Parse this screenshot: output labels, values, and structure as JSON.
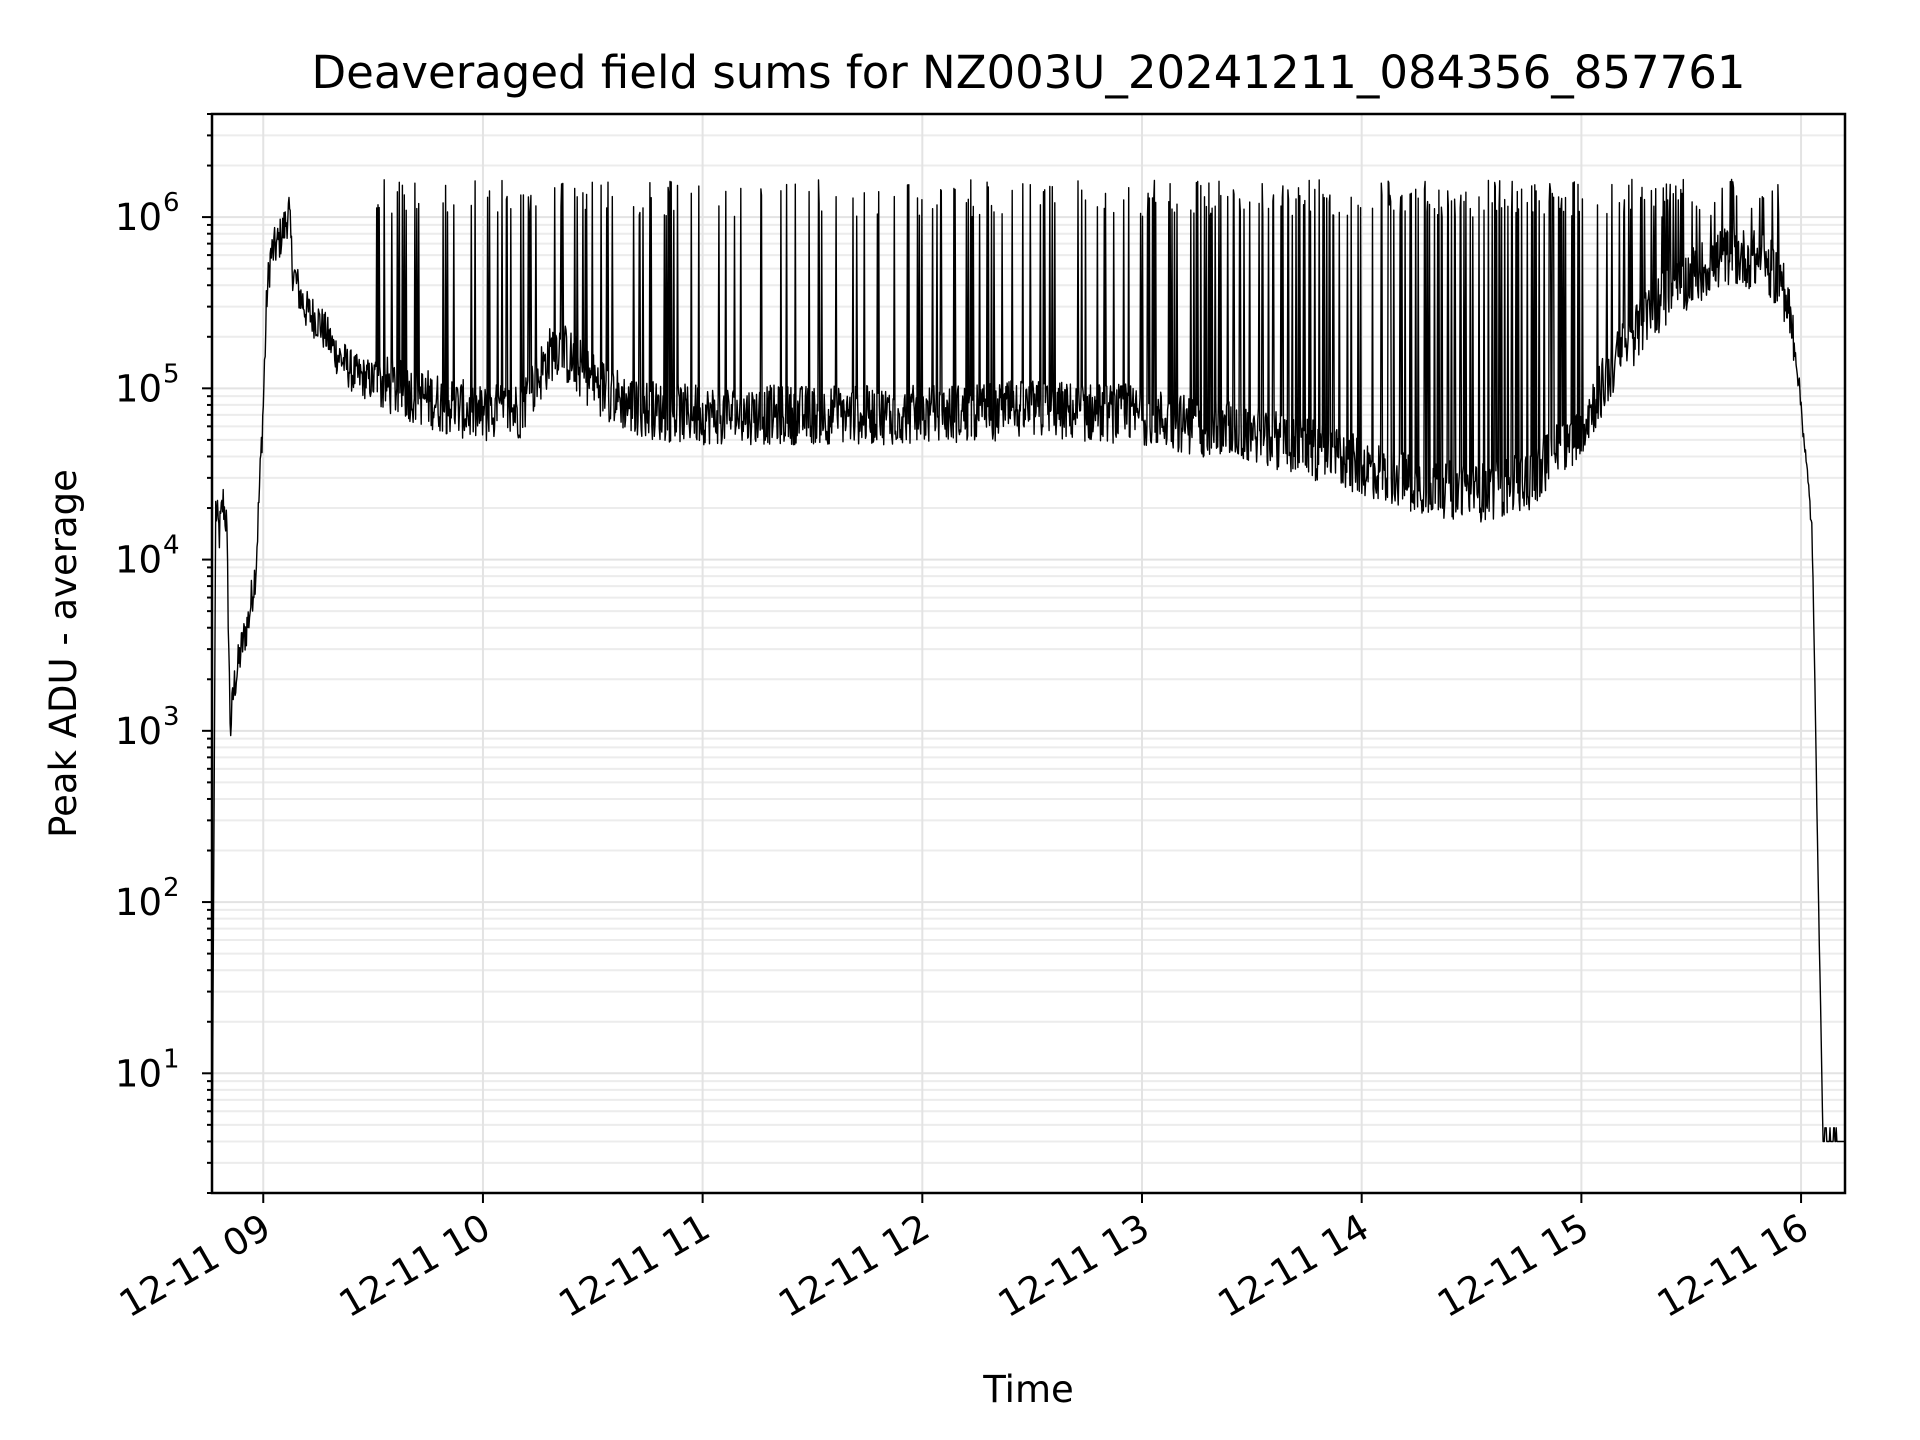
{
  "chart_data": {
    "type": "line",
    "title": "Deaveraged field sums for NZ003U_20241211_084356_857761",
    "xlabel": "Time",
    "ylabel": "Peak ADU - average",
    "yscale": "log",
    "ylim": [
      2,
      4000000
    ],
    "xlim": [
      "12-11 08:46",
      "12-11 16:12"
    ],
    "grid": true,
    "x_ticks": [
      {
        "label": "12-11 09",
        "value": "12-11 09:00"
      },
      {
        "label": "12-11 10",
        "value": "12-11 10:00"
      },
      {
        "label": "12-11 11",
        "value": "12-11 11:00"
      },
      {
        "label": "12-11 12",
        "value": "12-11 12:00"
      },
      {
        "label": "12-11 13",
        "value": "12-11 13:00"
      },
      {
        "label": "12-11 14",
        "value": "12-11 14:00"
      },
      {
        "label": "12-11 15",
        "value": "12-11 15:00"
      },
      {
        "label": "12-11 16",
        "value": "12-11 16:00"
      }
    ],
    "y_ticks": [
      {
        "base": "10",
        "exp": "1",
        "value": 10
      },
      {
        "base": "10",
        "exp": "2",
        "value": 100
      },
      {
        "base": "10",
        "exp": "3",
        "value": 1000
      },
      {
        "base": "10",
        "exp": "4",
        "value": 10000
      },
      {
        "base": "10",
        "exp": "5",
        "value": 100000
      },
      {
        "base": "10",
        "exp": "6",
        "value": 1000000
      }
    ],
    "series": [
      {
        "color": "#000000",
        "points": [
          [
            "12-11 08:47",
            20000
          ],
          [
            "12-11 08:48",
            14000
          ],
          [
            "12-11 08:49",
            22000
          ],
          [
            "12-11 08:50",
            16000
          ],
          [
            "12-11 08:51",
            1000
          ],
          [
            "12-11 08:52",
            1800
          ],
          [
            "12-11 08:54",
            3000
          ],
          [
            "12-11 08:56",
            4500
          ],
          [
            "12-11 08:58",
            9000
          ],
          [
            "12-11 09:00",
            80000
          ],
          [
            "12-11 09:01",
            350000
          ],
          [
            "12-11 09:02",
            600000
          ],
          [
            "12-11 09:04",
            700000
          ],
          [
            "12-11 09:06",
            900000
          ],
          [
            "12-11 09:07",
            1100000
          ],
          [
            "12-11 09:08",
            500000
          ],
          [
            "12-11 09:10",
            350000
          ],
          [
            "12-11 09:12",
            280000
          ],
          [
            "12-11 09:15",
            250000
          ],
          [
            "12-11 09:20",
            160000
          ],
          [
            "12-11 09:25",
            120000
          ],
          [
            "12-11 09:30",
            110000
          ],
          [
            "12-11 09:40",
            95000
          ],
          [
            "12-11 09:50",
            80000
          ],
          [
            "12-11 10:00",
            70000
          ],
          [
            "12-11 10:10",
            75000
          ],
          [
            "12-11 10:20",
            180000
          ],
          [
            "12-11 10:30",
            110000
          ],
          [
            "12-11 10:40",
            80000
          ],
          [
            "12-11 10:50",
            72000
          ],
          [
            "12-11 11:00",
            70000
          ],
          [
            "12-11 11:30",
            70000
          ],
          [
            "12-11 12:00",
            70000
          ],
          [
            "12-11 12:30",
            75000
          ],
          [
            "12-11 13:00",
            70000
          ],
          [
            "12-11 13:15",
            60000
          ],
          [
            "12-11 13:30",
            55000
          ],
          [
            "12-11 13:45",
            45000
          ],
          [
            "12-11 14:00",
            35000
          ],
          [
            "12-11 14:15",
            28000
          ],
          [
            "12-11 14:30",
            24000
          ],
          [
            "12-11 14:45",
            28000
          ],
          [
            "12-11 15:00",
            60000
          ],
          [
            "12-11 15:10",
            150000
          ],
          [
            "12-11 15:20",
            300000
          ],
          [
            "12-11 15:30",
            450000
          ],
          [
            "12-11 15:40",
            600000
          ],
          [
            "12-11 15:50",
            550000
          ],
          [
            "12-11 15:55",
            400000
          ],
          [
            "12-11 15:58",
            200000
          ],
          [
            "12-11 16:00",
            80000
          ],
          [
            "12-11 16:03",
            15000
          ],
          [
            "12-11 16:05",
            60
          ],
          [
            "12-11 16:06",
            4
          ],
          [
            "12-11 16:12",
            4
          ]
        ]
      }
    ]
  }
}
